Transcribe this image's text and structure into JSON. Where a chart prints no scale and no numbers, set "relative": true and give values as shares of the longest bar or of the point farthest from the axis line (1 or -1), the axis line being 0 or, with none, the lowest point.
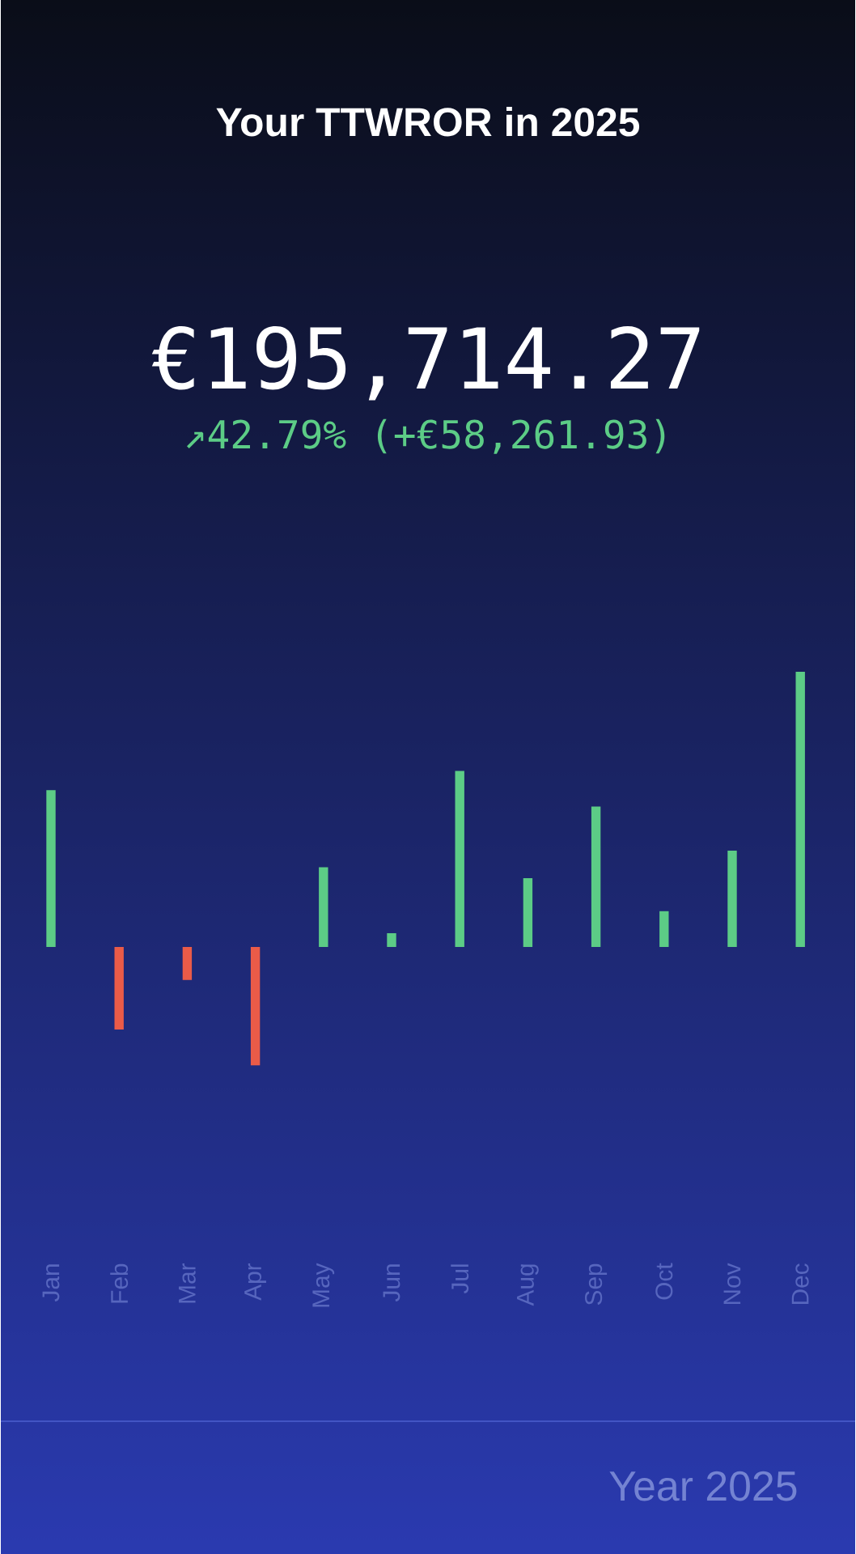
{
  "chart_data": {
    "type": "bar",
    "title": "Your TTWROR in 2025",
    "subtitle": "€195,714.27",
    "annotations": [
      "↗42.79% (+€58,261.93)",
      "Year 2025"
    ],
    "categories": [
      "Jan",
      "Feb",
      "Mar",
      "Apr",
      "May",
      "Jun",
      "Jul",
      "Aug",
      "Sep",
      "Oct",
      "Nov",
      "Dec"
    ],
    "relative": true,
    "colors": [
      "#5ccc86",
      "#ea5b48",
      "#ea5b48",
      "#ea5b48",
      "#5ccc86",
      "#5ccc86",
      "#5ccc86",
      "#5ccc86",
      "#5ccc86",
      "#5ccc86",
      "#5ccc86",
      "#5ccc86"
    ],
    "values": [
      0.57,
      -0.3,
      -0.12,
      -0.43,
      0.29,
      0.05,
      0.64,
      0.25,
      0.51,
      0.13,
      0.35,
      1.0
    ]
  }
}
